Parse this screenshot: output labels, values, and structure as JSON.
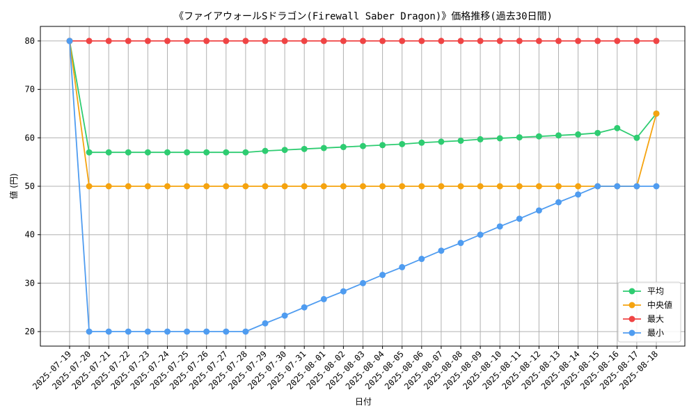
{
  "chart_data": {
    "type": "line",
    "title": "《ファイアウォールSドラゴン(Firewall Saber Dragon)》価格推移(過去30日間)",
    "xlabel": "日付",
    "ylabel": "値 (円)",
    "ylim": [
      17,
      83
    ],
    "yticks": [
      20,
      30,
      40,
      50,
      60,
      70,
      80
    ],
    "grid": true,
    "legend_position": "bottom-right",
    "categories": [
      "2025-07-19",
      "2025-07-20",
      "2025-07-21",
      "2025-07-22",
      "2025-07-23",
      "2025-07-24",
      "2025-07-25",
      "2025-07-26",
      "2025-07-27",
      "2025-07-28",
      "2025-07-29",
      "2025-07-30",
      "2025-07-31",
      "2025-08-01",
      "2025-08-02",
      "2025-08-03",
      "2025-08-04",
      "2025-08-05",
      "2025-08-06",
      "2025-08-07",
      "2025-08-08",
      "2025-08-09",
      "2025-08-10",
      "2025-08-11",
      "2025-08-12",
      "2025-08-13",
      "2025-08-14",
      "2025-08-15",
      "2025-08-16",
      "2025-08-17",
      "2025-08-18"
    ],
    "series": [
      {
        "name": "平均",
        "color": "#2ecc71",
        "values": [
          80,
          57,
          57,
          57,
          57,
          57,
          57,
          57,
          57,
          57,
          57.3,
          57.5,
          57.7,
          57.9,
          58.1,
          58.3,
          58.5,
          58.7,
          59,
          59.2,
          59.4,
          59.7,
          59.9,
          60.1,
          60.3,
          60.5,
          60.7,
          61,
          62,
          60,
          65
        ]
      },
      {
        "name": "中央値",
        "color": "#f5a30f",
        "values": [
          80,
          50,
          50,
          50,
          50,
          50,
          50,
          50,
          50,
          50,
          50,
          50,
          50,
          50,
          50,
          50,
          50,
          50,
          50,
          50,
          50,
          50,
          50,
          50,
          50,
          50,
          50,
          50,
          50,
          50,
          65
        ]
      },
      {
        "name": "最大",
        "color": "#ef4444",
        "values": [
          80,
          80,
          80,
          80,
          80,
          80,
          80,
          80,
          80,
          80,
          80,
          80,
          80,
          80,
          80,
          80,
          80,
          80,
          80,
          80,
          80,
          80,
          80,
          80,
          80,
          80,
          80,
          80,
          80,
          80,
          80
        ]
      },
      {
        "name": "最小",
        "color": "#4f9cf0",
        "values": [
          80,
          20,
          20,
          20,
          20,
          20,
          20,
          20,
          20,
          20,
          21.7,
          23.3,
          25,
          26.7,
          28.3,
          30,
          31.7,
          33.3,
          35,
          36.7,
          38.3,
          40,
          41.7,
          43.3,
          45,
          46.7,
          48.3,
          50,
          50,
          50,
          50
        ]
      }
    ]
  }
}
